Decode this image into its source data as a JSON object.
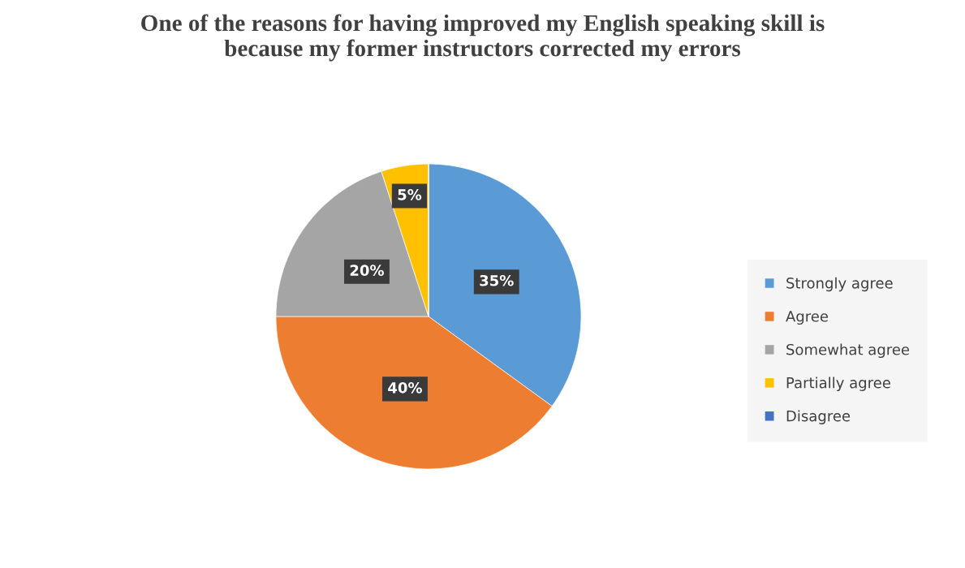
{
  "chart_data": {
    "type": "pie",
    "title": "One of the reasons for having improved my English speaking skill is\nbecause my former instructors corrected my errors",
    "categories": [
      "Strongly agree",
      "Agree",
      "Somewhat agree",
      "Partially agree",
      "Disagree"
    ],
    "values": [
      35,
      40,
      20,
      5,
      0
    ],
    "colors": [
      "#5b9bd5",
      "#ed7d31",
      "#a5a5a5",
      "#ffc000",
      "#4472c4"
    ],
    "value_labels": [
      "35%",
      "40%",
      "20%",
      "5%",
      null
    ],
    "legend": "right"
  }
}
